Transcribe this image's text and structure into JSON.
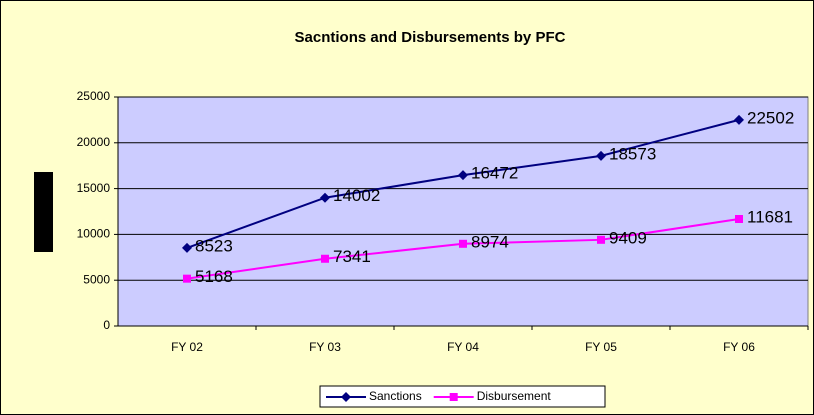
{
  "chart_data": {
    "type": "line",
    "title": "Sacntions and Disbursements by PFC",
    "categories": [
      "FY 02",
      "FY 03",
      "FY 04",
      "FY 05",
      "FY 06"
    ],
    "series": [
      {
        "name": "Sanctions",
        "color": "#000080",
        "marker": "diamond",
        "values": [
          8523,
          14002,
          16472,
          18573,
          22502
        ]
      },
      {
        "name": "Disbursement",
        "color": "#FF00FF",
        "marker": "square",
        "values": [
          5168,
          7341,
          8974,
          9409,
          11681
        ]
      }
    ],
    "ylim": [
      0,
      25000
    ],
    "yticks": [
      0,
      5000,
      10000,
      15000,
      20000,
      25000
    ],
    "grid": true,
    "legend": "bottom"
  }
}
